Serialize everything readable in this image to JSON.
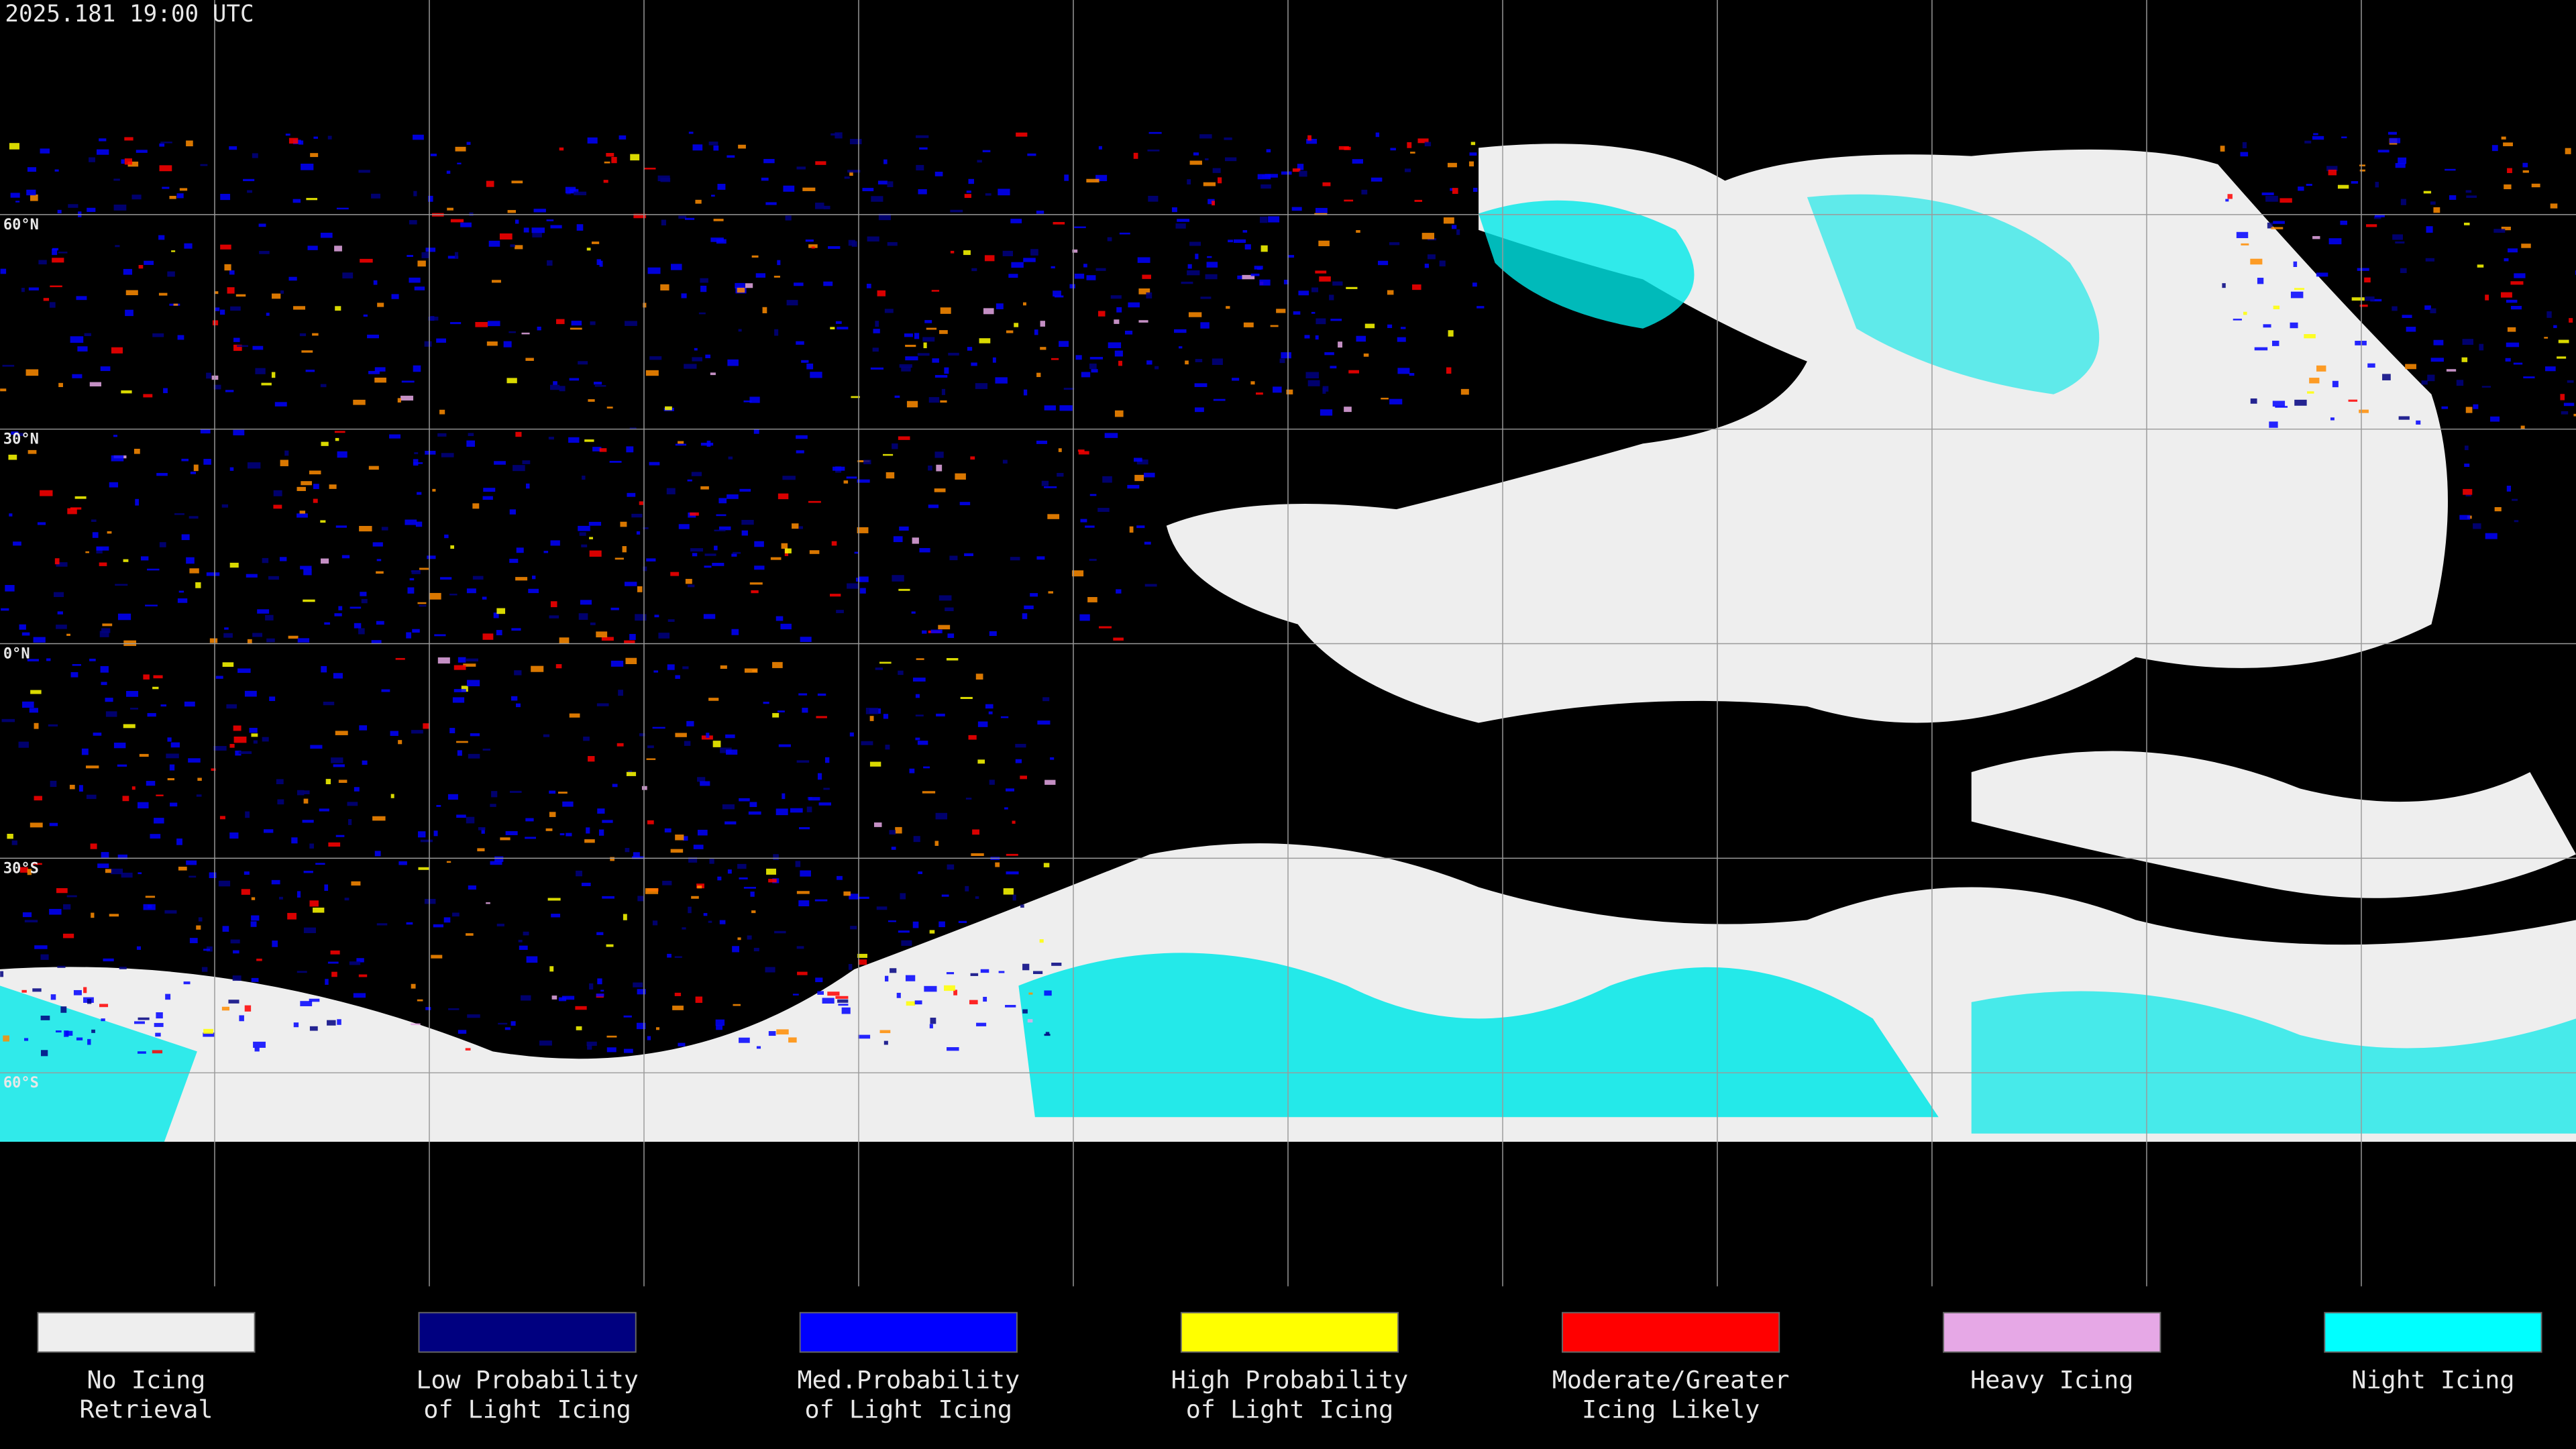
{
  "header": {
    "timestamp": "2025.181 19:00 UTC"
  },
  "map": {
    "latitude_labels": [
      "60°N",
      "30°N",
      "0°N",
      "30°S",
      "60°S"
    ]
  },
  "legend": {
    "items": [
      {
        "lines": [
          "No Icing",
          "Retrieval"
        ],
        "color": "#eeeeee"
      },
      {
        "lines": [
          "Low Probability",
          "of Light Icing"
        ],
        "color": "#000080"
      },
      {
        "lines": [
          "Med.Probability",
          "of Light Icing"
        ],
        "color": "#0000ff"
      },
      {
        "lines": [
          "High Probability",
          "of Light Icing"
        ],
        "color": "#ffff00"
      },
      {
        "lines": [
          "Moderate/Greater",
          "Icing Likely"
        ],
        "color": "#ff0000"
      },
      {
        "lines": [
          "Heavy Icing"
        ],
        "color": "#e6a8e6"
      },
      {
        "lines": [
          "Night Icing"
        ],
        "color": "#00ffff"
      }
    ]
  }
}
